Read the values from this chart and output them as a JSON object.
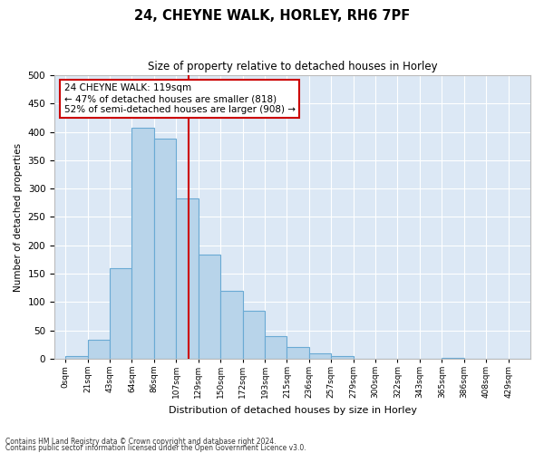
{
  "title": "24, CHEYNE WALK, HORLEY, RH6 7PF",
  "subtitle": "Size of property relative to detached houses in Horley",
  "xlabel": "Distribution of detached houses by size in Horley",
  "ylabel": "Number of detached properties",
  "bar_labels": [
    "0sqm",
    "21sqm",
    "43sqm",
    "64sqm",
    "86sqm",
    "107sqm",
    "129sqm",
    "150sqm",
    "172sqm",
    "193sqm",
    "215sqm",
    "236sqm",
    "257sqm",
    "279sqm",
    "300sqm",
    "322sqm",
    "343sqm",
    "365sqm",
    "386sqm",
    "408sqm",
    "429sqm"
  ],
  "bar_values": [
    5,
    33,
    160,
    408,
    388,
    283,
    184,
    120,
    85,
    39,
    20,
    10,
    5,
    0,
    0,
    0,
    0,
    2,
    0,
    0,
    0
  ],
  "bar_color": "#b8d4ea",
  "bar_edge_color": "#6aaad4",
  "vline_pos": 5.545,
  "vline_color": "#cc0000",
  "annotation_text": "24 CHEYNE WALK: 119sqm\n← 47% of detached houses are smaller (818)\n52% of semi-detached houses are larger (908) →",
  "annotation_box_color": "#ffffff",
  "annotation_box_edge": "#cc0000",
  "ylim": [
    0,
    500
  ],
  "yticks": [
    0,
    50,
    100,
    150,
    200,
    250,
    300,
    350,
    400,
    450,
    500
  ],
  "bg_color": "#dce8f5",
  "grid_color": "#ffffff",
  "footer_line1": "Contains HM Land Registry data © Crown copyright and database right 2024.",
  "footer_line2": "Contains public sector information licensed under the Open Government Licence v3.0."
}
